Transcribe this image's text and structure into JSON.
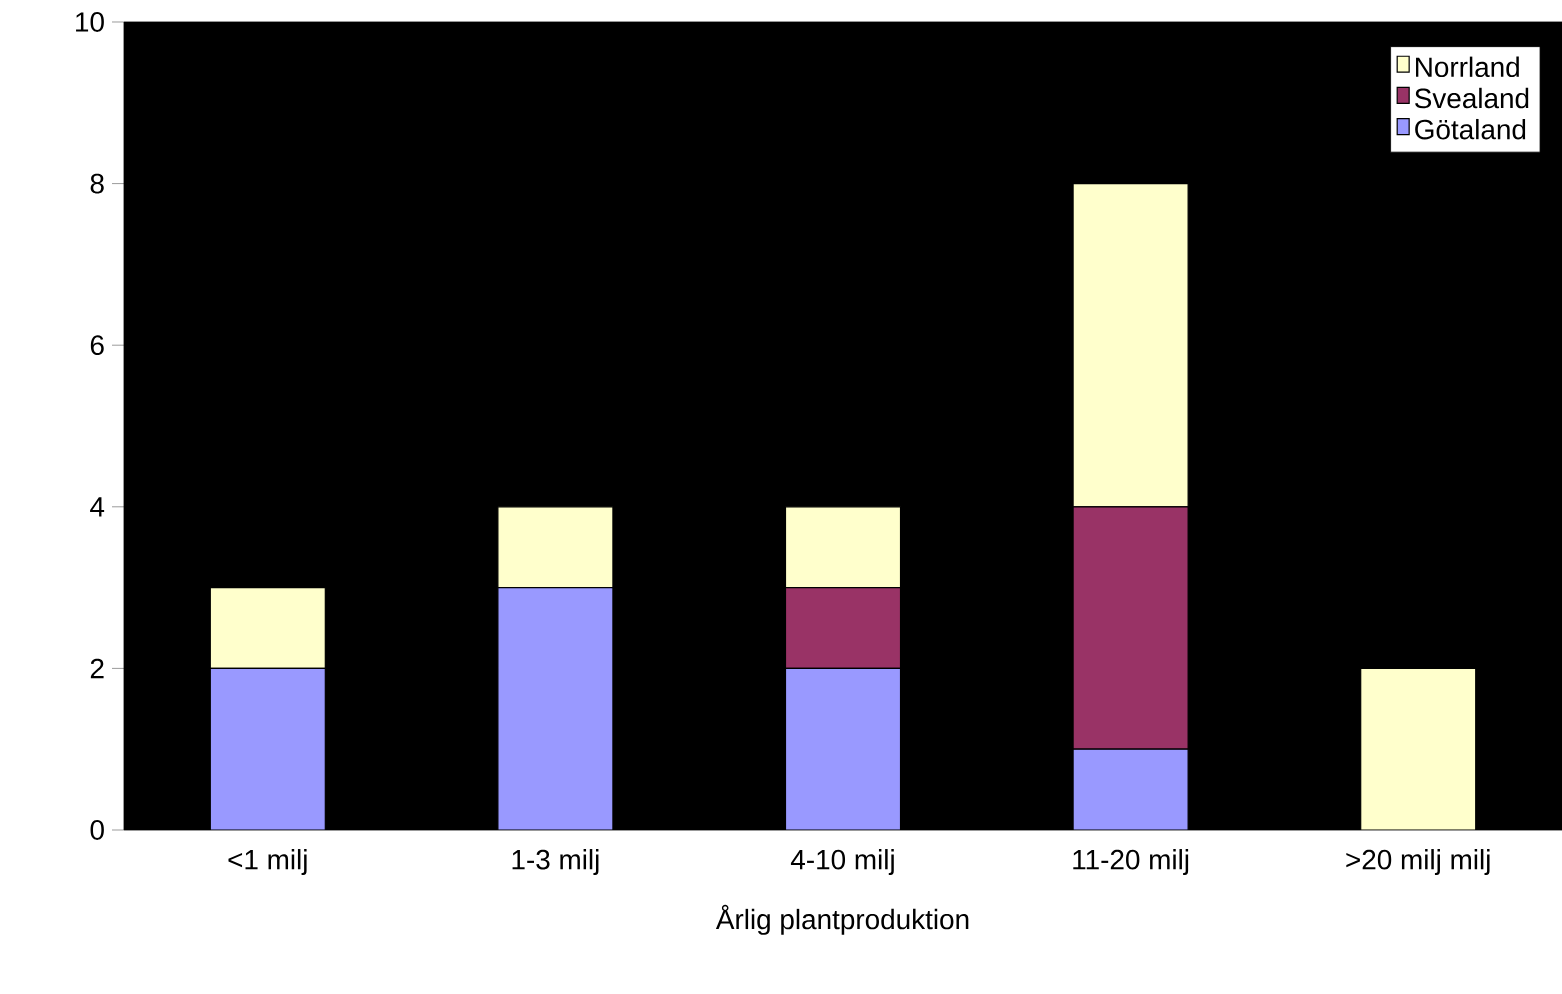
{
  "chart_data": {
    "type": "bar",
    "stacked": true,
    "xlabel": "Årlig plantproduktion",
    "categories": [
      "<1 milj",
      "1-3 milj",
      "4-10 milj",
      "11-20 milj",
      ">20 milj milj"
    ],
    "series": [
      {
        "name": "Götaland",
        "color": "#9999ff",
        "values": [
          2,
          3,
          2,
          1,
          0
        ]
      },
      {
        "name": "Svealand",
        "color": "#993366",
        "values": [
          0,
          0,
          1,
          3,
          0
        ]
      },
      {
        "name": "Norrland",
        "color": "#ffffcc",
        "values": [
          1,
          1,
          1,
          4,
          2
        ]
      }
    ],
    "ylim": [
      0,
      10
    ],
    "yticks": [
      0,
      2,
      4,
      6,
      8,
      10
    ],
    "legend": "top right",
    "grid": false
  }
}
